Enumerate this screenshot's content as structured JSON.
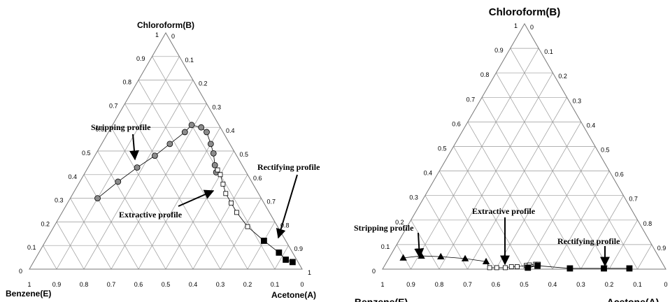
{
  "chart_data": [
    {
      "type": "ternary",
      "title": "Chloroform(B)",
      "left_label": "Benzene(E)",
      "right_label": "Acetone(A)",
      "grid": true,
      "bticks": [
        0,
        0.1,
        0.2,
        0.3,
        0.4,
        0.5,
        0.6,
        0.7,
        0.8,
        0.9,
        1
      ],
      "aticks": [
        0,
        0.1,
        0.2,
        0.3,
        0.4,
        0.5,
        0.6,
        0.7,
        0.8,
        0.9,
        1
      ],
      "eticks": [
        1,
        0.9,
        0.8,
        0.7,
        0.6,
        0.5,
        0.4,
        0.3,
        0.2,
        0.1,
        0
      ],
      "series": [
        {
          "name": "Stripping profile",
          "marker": "circle",
          "color": "#8c8c8c",
          "acetone": [
            0.1,
            0.14,
            0.18,
            0.22,
            0.25,
            0.28,
            0.29,
            0.33,
            0.36,
            0.4,
            0.43,
            0.46,
            0.48
          ],
          "chloroform": [
            0.3,
            0.37,
            0.43,
            0.48,
            0.53,
            0.58,
            0.61,
            0.6,
            0.58,
            0.53,
            0.49,
            0.44,
            0.41
          ]
        },
        {
          "name": "Extractive profile",
          "marker": "square",
          "color": "#ffffff",
          "acetone": [
            0.48,
            0.5,
            0.53,
            0.56,
            0.6,
            0.64,
            0.71
          ],
          "chloroform": [
            0.42,
            0.4,
            0.36,
            0.32,
            0.28,
            0.24,
            0.18
          ]
        },
        {
          "name": "Rectifying profile",
          "marker": "square",
          "color": "#000000",
          "acetone": [
            0.8,
            0.88,
            0.92,
            0.95
          ],
          "chloroform": [
            0.12,
            0.07,
            0.04,
            0.03
          ]
        }
      ]
    },
    {
      "type": "ternary",
      "title": "Chloroform(B)",
      "left_label": "Benzene(E)",
      "right_label": "Acetone(A)",
      "grid": true,
      "bticks": [
        0,
        0.1,
        0.2,
        0.3,
        0.4,
        0.5,
        0.6,
        0.7,
        0.8,
        0.9,
        1
      ],
      "aticks": [
        0,
        0.1,
        0.2,
        0.3,
        0.4,
        0.5,
        0.6,
        0.7,
        0.8,
        0.9
      ],
      "eticks": [
        1,
        0.9,
        0.8,
        0.7,
        0.6,
        0.5,
        0.4,
        0.3,
        0.2,
        0.1,
        0
      ],
      "series": [
        {
          "name": "Stripping profile",
          "marker": "triangle",
          "color": "#000000",
          "acetone": [
            0.05,
            0.11,
            0.18,
            0.27,
            0.35
          ],
          "chloroform": [
            0.046,
            0.054,
            0.051,
            0.043,
            0.031
          ]
        },
        {
          "name": "Extractive profile",
          "marker": "square",
          "color": "#ffffff",
          "acetone": [
            0.375,
            0.4,
            0.43,
            0.45,
            0.47,
            0.5,
            0.51,
            0.53,
            0.54
          ],
          "chloroform": [
            0.006,
            0.006,
            0.006,
            0.01,
            0.01,
            0.015,
            0.017,
            0.02,
            0.02
          ]
        },
        {
          "name": "Rectifying profile",
          "marker": "square",
          "color": "#000000",
          "acetone": [
            0.51,
            0.54,
            0.66,
            0.78,
            0.87
          ],
          "chloroform": [
            0.006,
            0.014,
            0.003,
            0.003,
            0.003
          ]
        }
      ]
    }
  ]
}
